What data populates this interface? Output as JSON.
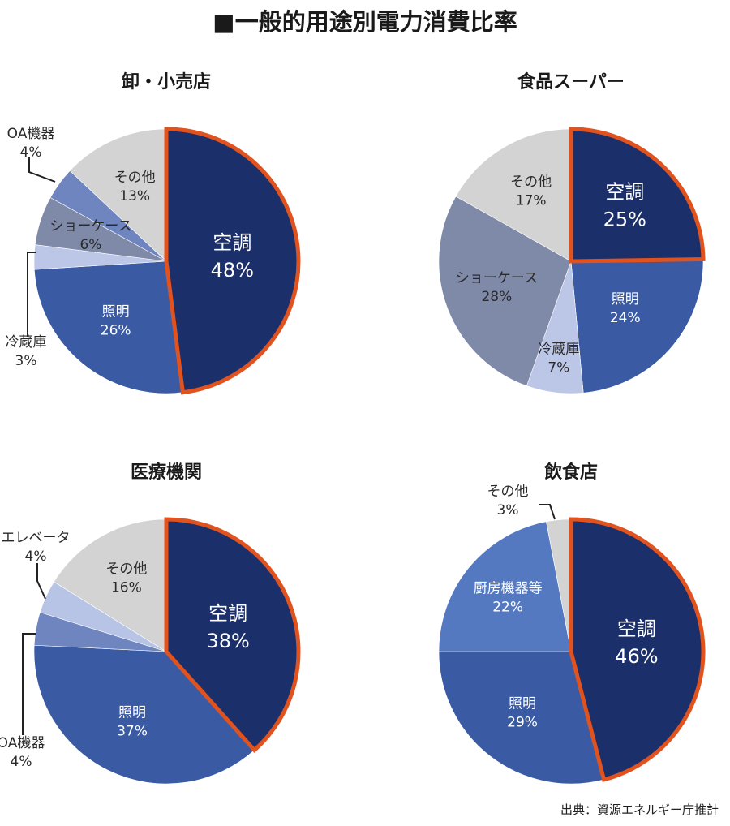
{
  "title": "■一般的用途別電力消費比率",
  "source": "出典：資源エネルギー庁推計",
  "colors": {
    "aircon": "#1b2f6b",
    "lighting": "#3a5ba3",
    "kitchen": "#5479c1",
    "showcase": "#7f8aa8",
    "oa": "#6f85c0",
    "fridge": "#bcc6e6",
    "elevator": "#b7c4e6",
    "other": "#d3d3d3",
    "highlight": "#e0521e"
  },
  "chart_data": [
    {
      "type": "pie",
      "title": "卸・小売店",
      "slices": [
        {
          "label": "空調",
          "value": 48,
          "color": "#1b2f6b",
          "highlight": true
        },
        {
          "label": "照明",
          "value": 26,
          "color": "#3a5ba3"
        },
        {
          "label": "冷蔵庫",
          "value": 3,
          "color": "#bcc6e6"
        },
        {
          "label": "ショーケース",
          "value": 6,
          "color": "#7f8aa8"
        },
        {
          "label": "OA機器",
          "value": 4,
          "color": "#6f85c0"
        },
        {
          "label": "その他",
          "value": 13,
          "color": "#d3d3d3"
        }
      ]
    },
    {
      "type": "pie",
      "title": "食品スーパー",
      "slices": [
        {
          "label": "空調",
          "value": 25,
          "color": "#1b2f6b",
          "highlight": true
        },
        {
          "label": "照明",
          "value": 24,
          "color": "#3a5ba3"
        },
        {
          "label": "冷蔵庫",
          "value": 7,
          "color": "#bcc6e6"
        },
        {
          "label": "ショーケース",
          "value": 28,
          "color": "#7f8aa8"
        },
        {
          "label": "その他",
          "value": 17,
          "color": "#d3d3d3"
        }
      ]
    },
    {
      "type": "pie",
      "title": "医療機関",
      "slices": [
        {
          "label": "空調",
          "value": 38,
          "color": "#1b2f6b",
          "highlight": true
        },
        {
          "label": "照明",
          "value": 37,
          "color": "#3a5ba3"
        },
        {
          "label": "OA機器",
          "value": 4,
          "color": "#6f85c0"
        },
        {
          "label": "エレベータ",
          "value": 4,
          "color": "#b7c4e6"
        },
        {
          "label": "その他",
          "value": 16,
          "color": "#d3d3d3"
        }
      ]
    },
    {
      "type": "pie",
      "title": "飲食店",
      "slices": [
        {
          "label": "空調",
          "value": 46,
          "color": "#1b2f6b",
          "highlight": true
        },
        {
          "label": "照明",
          "value": 29,
          "color": "#3a5ba3"
        },
        {
          "label": "厨房機器等",
          "value": 22,
          "color": "#5479c1"
        },
        {
          "label": "その他",
          "value": 3,
          "color": "#d3d3d3"
        }
      ]
    }
  ]
}
